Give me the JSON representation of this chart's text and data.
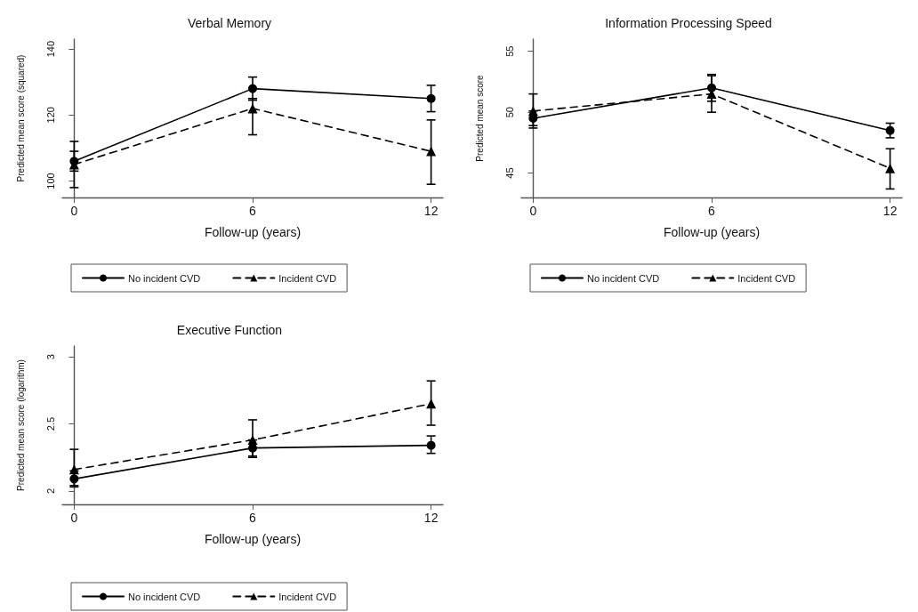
{
  "chart_data": [
    {
      "type": "line",
      "title": "Verbal Memory",
      "xlabel": "Follow-up (years)",
      "ylabel": "Predicted mean score (squared)",
      "x": [
        0,
        6,
        12
      ],
      "xlim": [
        -0.4,
        12.4
      ],
      "xticks": [
        0,
        6,
        12
      ],
      "ylim": [
        95,
        143
      ],
      "yticks": [
        100,
        120,
        140
      ],
      "grid": false,
      "legend": "bottom",
      "series": [
        {
          "name": "No incident CVD",
          "color": "#000000",
          "marker": "circle",
          "line_style": "solid",
          "values": [
            106,
            128,
            125
          ],
          "errors": [
            [
              103,
              109
            ],
            [
              124.5,
              131.5
            ],
            [
              121,
              129
            ]
          ]
        },
        {
          "name": "Incident CVD",
          "color": "#000000",
          "marker": "triangle",
          "line_style": "dashed",
          "values": [
            105,
            122,
            109
          ],
          "errors": [
            [
              98,
              112
            ],
            [
              114,
              125
            ],
            [
              99,
              118.5
            ]
          ]
        }
      ]
    },
    {
      "type": "line",
      "title": "Information Processing Speed",
      "xlabel": "Follow-up (years)",
      "ylabel": "Predicted mean score",
      "x": [
        0,
        6,
        12
      ],
      "xlim": [
        -0.4,
        12.4
      ],
      "xticks": [
        0,
        6,
        12
      ],
      "ylim": [
        43,
        56
      ],
      "yticks": [
        45,
        50,
        55
      ],
      "grid": false,
      "legend": "bottom",
      "series": [
        {
          "name": "No incident CVD",
          "color": "#000000",
          "marker": "circle",
          "line_style": "solid",
          "values": [
            49.5,
            52,
            48.5
          ],
          "errors": [
            [
              48.9,
              50.1
            ],
            [
              50.9,
              53.1
            ],
            [
              47.9,
              49.1
            ]
          ]
        },
        {
          "name": "Incident CVD",
          "color": "#000000",
          "marker": "triangle",
          "line_style": "dashed",
          "values": [
            50.1,
            51.5,
            45.4
          ],
          "errors": [
            [
              48.7,
              51.5
            ],
            [
              50,
              53
            ],
            [
              43.7,
              47
            ]
          ]
        }
      ]
    },
    {
      "type": "line",
      "title": "Executive Function",
      "xlabel": "Follow-up (years)",
      "ylabel": "Predicted mean score (logarithm)",
      "x": [
        0,
        6,
        12
      ],
      "xlim": [
        -0.4,
        12.4
      ],
      "xticks": [
        0,
        6,
        12
      ],
      "ylim": [
        1.9,
        3.08
      ],
      "yticks": [
        2,
        2.5,
        3
      ],
      "grid": false,
      "legend": "bottom",
      "series": [
        {
          "name": "No incident CVD",
          "color": "#000000",
          "marker": "circle",
          "line_style": "solid",
          "values": [
            2.09,
            2.32,
            2.34
          ],
          "errors": [
            [
              2.04,
              2.15
            ],
            [
              2.26,
              2.38
            ],
            [
              2.28,
              2.41
            ]
          ]
        },
        {
          "name": "Incident CVD",
          "color": "#000000",
          "marker": "triangle",
          "line_style": "dashed",
          "values": [
            2.16,
            2.38,
            2.65
          ],
          "errors": [
            [
              2.03,
              2.31
            ],
            [
              2.25,
              2.53
            ],
            [
              2.49,
              2.82
            ]
          ]
        }
      ]
    }
  ]
}
